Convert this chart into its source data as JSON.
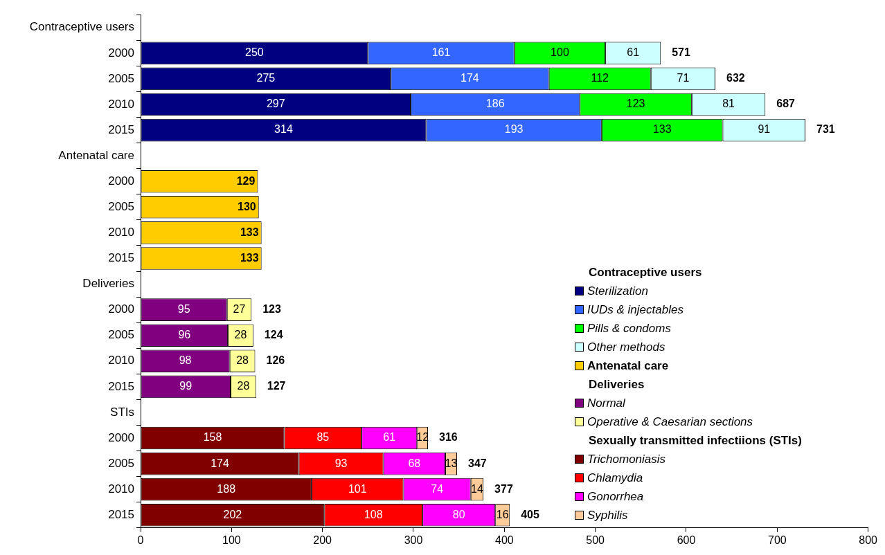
{
  "chart_data": {
    "type": "bar",
    "orientation": "horizontal",
    "stacked": true,
    "data_labels": true,
    "grid": false,
    "legend": "bottom right",
    "categories": [
      "Contraceptive users",
      "2000",
      "2005",
      "2010",
      "2015",
      "Antenatal care",
      "2000",
      "2005",
      "2010",
      "2015",
      "Deliveries",
      "2000",
      "2005",
      "2010",
      "2015",
      "STIs",
      "2000",
      "2005",
      "2010",
      "2015"
    ],
    "xlim": [
      0,
      800
    ],
    "xticks": [
      0,
      100,
      200,
      300,
      400,
      500,
      600,
      700,
      800
    ],
    "totals": [
      null,
      "571",
      "632",
      "687",
      "731",
      null,
      null,
      null,
      null,
      null,
      null,
      "123",
      "124",
      "126",
      "127",
      null,
      "316",
      "347",
      "377",
      "405"
    ],
    "annotations": [
      "Contraceptive users",
      "Deliveries",
      "Sexually transmitted infectiions (STIs)"
    ],
    "series": [
      {
        "name": "Sterilization",
        "color": "#000080",
        "values": [
          null,
          250,
          275,
          297,
          314,
          null,
          null,
          null,
          null,
          null,
          null,
          null,
          null,
          null,
          null,
          null,
          null,
          null,
          null,
          null
        ]
      },
      {
        "name": "IUDs & injectables",
        "color": "#3366ff",
        "values": [
          null,
          161,
          174,
          186,
          193,
          null,
          null,
          null,
          null,
          null,
          null,
          null,
          null,
          null,
          null,
          null,
          null,
          null,
          null,
          null
        ]
      },
      {
        "name": "Pills & condoms",
        "color": "#00ff00",
        "values": [
          null,
          100,
          112,
          123,
          133,
          null,
          null,
          null,
          null,
          null,
          null,
          null,
          null,
          null,
          null,
          null,
          null,
          null,
          null,
          null
        ]
      },
      {
        "name": "Other methods",
        "color": "#ccffff",
        "values": [
          null,
          61,
          71,
          81,
          91,
          null,
          null,
          null,
          null,
          null,
          null,
          null,
          null,
          null,
          null,
          null,
          null,
          null,
          null,
          null
        ]
      },
      {
        "name": "Antenatal care",
        "color": "#ffcc00",
        "values": [
          null,
          null,
          null,
          null,
          null,
          null,
          129,
          130,
          133,
          133,
          null,
          null,
          null,
          null,
          null,
          null,
          null,
          null,
          null,
          null
        ]
      },
      {
        "name": "Normal",
        "color": "#800080",
        "values": [
          null,
          null,
          null,
          null,
          null,
          null,
          null,
          null,
          null,
          null,
          null,
          95,
          96,
          98,
          99,
          null,
          null,
          null,
          null,
          null
        ]
      },
      {
        "name": "Operative & Caesarian sections",
        "color": "#ffff99",
        "values": [
          null,
          null,
          null,
          null,
          null,
          null,
          null,
          null,
          null,
          null,
          null,
          27,
          28,
          28,
          28,
          null,
          null,
          null,
          null,
          null
        ]
      },
      {
        "name": "Trichomoniasis",
        "color": "#800000",
        "values": [
          null,
          null,
          null,
          null,
          null,
          null,
          null,
          null,
          null,
          null,
          null,
          null,
          null,
          null,
          null,
          null,
          158,
          174,
          188,
          202
        ]
      },
      {
        "name": "Chlamydia",
        "color": "#ff0000",
        "values": [
          null,
          null,
          null,
          null,
          null,
          null,
          null,
          null,
          null,
          null,
          null,
          null,
          null,
          null,
          null,
          null,
          85,
          93,
          101,
          108
        ]
      },
      {
        "name": "Gonorrhea",
        "color": "#ff00ff",
        "values": [
          null,
          null,
          null,
          null,
          null,
          null,
          null,
          null,
          null,
          null,
          null,
          null,
          null,
          null,
          null,
          null,
          61,
          68,
          74,
          80
        ]
      },
      {
        "name": "Syphilis",
        "color": "#ffcc99",
        "values": [
          null,
          null,
          null,
          null,
          null,
          null,
          null,
          null,
          null,
          null,
          null,
          null,
          null,
          null,
          null,
          null,
          12,
          13,
          14,
          16
        ]
      }
    ]
  }
}
